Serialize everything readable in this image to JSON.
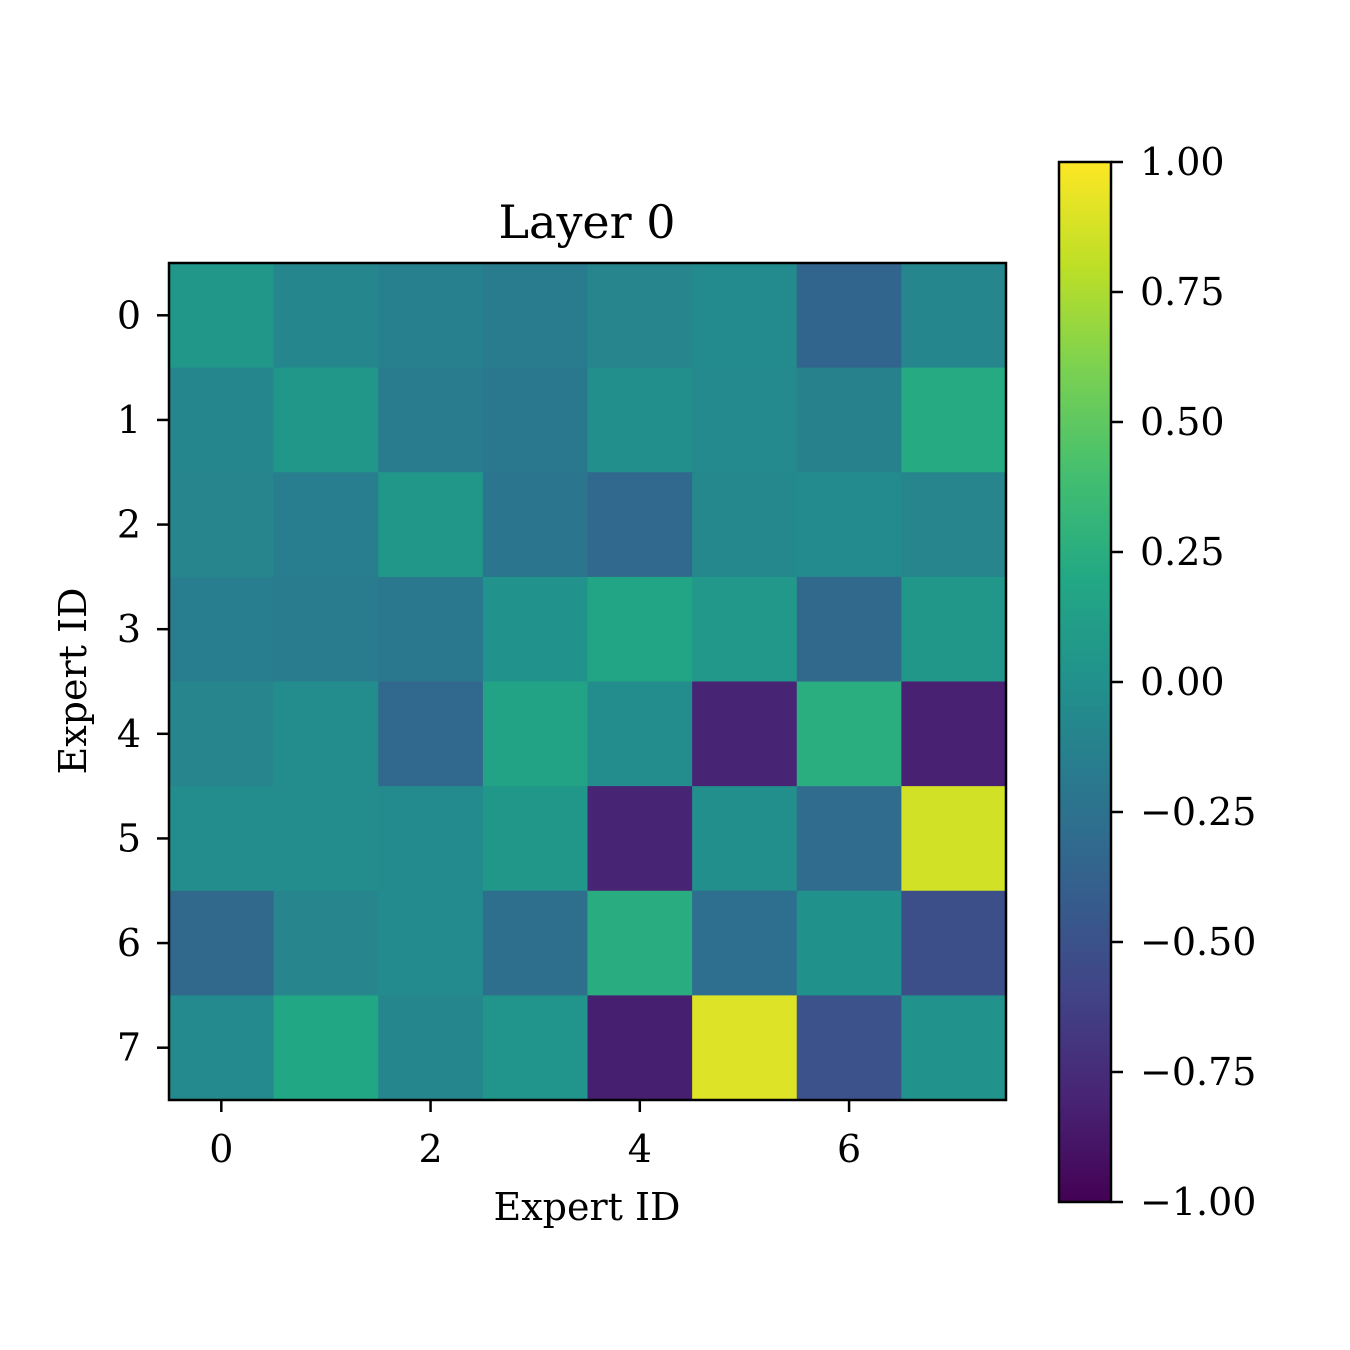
{
  "chart_data": {
    "type": "heatmap",
    "title": "Layer 0",
    "xlabel": "Expert ID",
    "ylabel": "Expert ID",
    "x_ticks": [
      0,
      2,
      4,
      6
    ],
    "y_ticks": [
      0,
      1,
      2,
      3,
      4,
      5,
      6,
      7
    ],
    "rows": [
      0,
      1,
      2,
      3,
      4,
      5,
      6,
      7
    ],
    "cols": [
      0,
      1,
      2,
      3,
      4,
      5,
      6,
      7
    ],
    "values": [
      [
        0.05,
        -0.08,
        -0.14,
        -0.18,
        -0.1,
        -0.05,
        -0.35,
        -0.08
      ],
      [
        -0.08,
        0.05,
        -0.17,
        -0.2,
        -0.02,
        -0.06,
        -0.13,
        0.22
      ],
      [
        -0.1,
        -0.15,
        0.05,
        -0.22,
        -0.33,
        -0.07,
        -0.05,
        -0.1
      ],
      [
        -0.15,
        -0.18,
        -0.2,
        0.01,
        0.17,
        0.06,
        -0.32,
        0.05
      ],
      [
        -0.1,
        -0.03,
        -0.33,
        0.16,
        -0.03,
        -0.8,
        0.25,
        -0.82
      ],
      [
        -0.03,
        -0.04,
        -0.05,
        0.05,
        -0.8,
        -0.02,
        -0.3,
        0.86
      ],
      [
        -0.32,
        -0.1,
        -0.05,
        -0.27,
        0.24,
        -0.28,
        0.0,
        -0.52
      ],
      [
        -0.06,
        0.19,
        -0.09,
        0.03,
        -0.83,
        0.9,
        -0.5,
        0.01
      ]
    ],
    "colorbar": {
      "min": -1.0,
      "max": 1.0,
      "ticks": [
        "1.00",
        "0.75",
        "0.50",
        "0.25",
        "0.00",
        "−0.25",
        "−0.50",
        "−0.75",
        "−1.00"
      ],
      "tick_values": [
        1.0,
        0.75,
        0.5,
        0.25,
        0.0,
        -0.25,
        -0.5,
        -0.75,
        -1.0
      ]
    },
    "colormap": "viridis",
    "xlim": [
      -0.5,
      7.5
    ],
    "ylim": [
      7.5,
      -0.5
    ],
    "grid": false
  }
}
